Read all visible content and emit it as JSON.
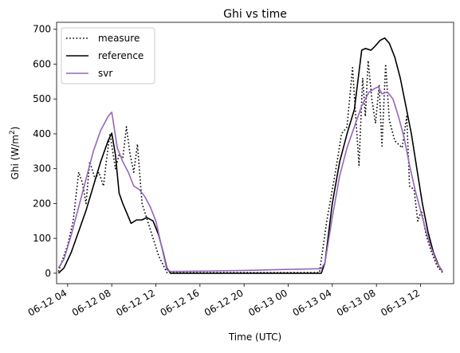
{
  "chart_data": {
    "type": "line",
    "title": "Ghi vs time",
    "xlabel": "Time (UTC)",
    "ylabel": "Ghi (W/m",
    "ylabel_sup": "2",
    "ylabel_close": ")",
    "xlim": [
      "06-12 03:00",
      "06-13 15:00"
    ],
    "ylim": [
      -30,
      720
    ],
    "yticks": [
      0,
      100,
      200,
      300,
      400,
      500,
      600,
      700
    ],
    "xticks": [
      {
        "value": "06-12 04:00",
        "label": "06-12 04"
      },
      {
        "value": "06-12 08:00",
        "label": "06-12 08"
      },
      {
        "value": "06-12 12:00",
        "label": "06-12 12"
      },
      {
        "value": "06-12 16:00",
        "label": "06-12 16"
      },
      {
        "value": "06-12 20:00",
        "label": "06-12 20"
      },
      {
        "value": "06-13 00:00",
        "label": "06-13 00"
      },
      {
        "value": "06-13 04:00",
        "label": "06-13 04"
      },
      {
        "value": "06-13 08:00",
        "label": "06-13 08"
      },
      {
        "value": "06-13 12:00",
        "label": "06-13 12"
      }
    ],
    "grid": false,
    "legend_position": "upper left",
    "series": [
      {
        "name": "measure",
        "color": "#000000",
        "style": "dotted",
        "points": [
          [
            "06-12 03:10",
            5
          ],
          [
            "06-12 04:00",
            80
          ],
          [
            "06-12 04:30",
            150
          ],
          [
            "06-12 05:00",
            290
          ],
          [
            "06-12 05:20",
            260
          ],
          [
            "06-12 05:40",
            200
          ],
          [
            "06-12 06:00",
            320
          ],
          [
            "06-12 06:30",
            270
          ],
          [
            "06-12 06:50",
            290
          ],
          [
            "06-12 07:15",
            250
          ],
          [
            "06-12 07:30",
            320
          ],
          [
            "06-12 07:50",
            400
          ],
          [
            "06-12 08:20",
            300
          ],
          [
            "06-12 08:40",
            340
          ],
          [
            "06-12 09:00",
            330
          ],
          [
            "06-12 09:20",
            420
          ],
          [
            "06-12 09:40",
            340
          ],
          [
            "06-12 10:00",
            290
          ],
          [
            "06-12 10:20",
            370
          ],
          [
            "06-12 10:45",
            200
          ],
          [
            "06-12 11:15",
            150
          ],
          [
            "06-12 11:45",
            100
          ],
          [
            "06-12 12:15",
            50
          ],
          [
            "06-12 13:00",
            2
          ],
          [
            "06-12 16:00",
            2
          ],
          [
            "06-12 20:00",
            2
          ],
          [
            "06-13 00:00",
            2
          ],
          [
            "06-13 02:50",
            2
          ],
          [
            "06-13 03:30",
            150
          ],
          [
            "06-13 04:20",
            300
          ],
          [
            "06-13 04:50",
            400
          ],
          [
            "06-13 05:20",
            420
          ],
          [
            "06-13 05:50",
            590
          ],
          [
            "06-13 06:10",
            430
          ],
          [
            "06-13 06:25",
            310
          ],
          [
            "06-13 06:45",
            560
          ],
          [
            "06-13 07:00",
            450
          ],
          [
            "06-13 07:15",
            610
          ],
          [
            "06-13 07:35",
            500
          ],
          [
            "06-13 07:55",
            430
          ],
          [
            "06-13 08:15",
            540
          ],
          [
            "06-13 08:30",
            365
          ],
          [
            "06-13 08:50",
            600
          ],
          [
            "06-13 09:10",
            440
          ],
          [
            "06-13 09:40",
            380
          ],
          [
            "06-13 10:20",
            360
          ],
          [
            "06-13 10:45",
            450
          ],
          [
            "06-13 11:00",
            250
          ],
          [
            "06-13 11:25",
            240
          ],
          [
            "06-13 11:45",
            150
          ],
          [
            "06-13 12:05",
            180
          ],
          [
            "06-13 12:30",
            110
          ],
          [
            "06-13 13:00",
            60
          ],
          [
            "06-13 13:30",
            20
          ],
          [
            "06-13 14:00",
            2
          ]
        ]
      },
      {
        "name": "reference",
        "color": "#000000",
        "style": "solid",
        "points": [
          [
            "06-12 03:10",
            0
          ],
          [
            "06-12 03:40",
            15
          ],
          [
            "06-12 04:20",
            60
          ],
          [
            "06-12 05:00",
            120
          ],
          [
            "06-12 05:40",
            180
          ],
          [
            "06-12 06:20",
            250
          ],
          [
            "06-12 07:00",
            320
          ],
          [
            "06-12 07:40",
            380
          ],
          [
            "06-12 08:00",
            402
          ],
          [
            "06-12 08:20",
            340
          ],
          [
            "06-12 08:40",
            230
          ],
          [
            "06-12 09:00",
            200
          ],
          [
            "06-12 09:20",
            175
          ],
          [
            "06-12 09:45",
            143
          ],
          [
            "06-12 10:15",
            153
          ],
          [
            "06-12 10:45",
            153
          ],
          [
            "06-12 11:10",
            160
          ],
          [
            "06-12 11:45",
            150
          ],
          [
            "06-12 12:15",
            110
          ],
          [
            "06-12 12:40",
            60
          ],
          [
            "06-12 13:00",
            15
          ],
          [
            "06-12 13:20",
            0
          ],
          [
            "06-12 16:00",
            0
          ],
          [
            "06-12 20:00",
            0
          ],
          [
            "06-13 00:00",
            0
          ],
          [
            "06-13 03:00",
            0
          ],
          [
            "06-13 03:20",
            30
          ],
          [
            "06-13 04:00",
            200
          ],
          [
            "06-13 04:40",
            320
          ],
          [
            "06-13 05:20",
            400
          ],
          [
            "06-13 06:00",
            470
          ],
          [
            "06-13 06:40",
            640
          ],
          [
            "06-13 07:00",
            645
          ],
          [
            "06-13 07:30",
            640
          ],
          [
            "06-13 07:50",
            650
          ],
          [
            "06-13 08:20",
            668
          ],
          [
            "06-13 08:45",
            675
          ],
          [
            "06-13 09:10",
            660
          ],
          [
            "06-13 09:40",
            620
          ],
          [
            "06-13 10:10",
            560
          ],
          [
            "06-13 10:40",
            480
          ],
          [
            "06-13 11:10",
            400
          ],
          [
            "06-13 11:40",
            300
          ],
          [
            "06-13 12:10",
            200
          ],
          [
            "06-13 12:40",
            120
          ],
          [
            "06-13 13:10",
            60
          ],
          [
            "06-13 13:40",
            20
          ],
          [
            "06-13 14:00",
            5
          ]
        ]
      },
      {
        "name": "svr",
        "color": "#9467bd",
        "style": "solid",
        "points": [
          [
            "06-12 03:10",
            15
          ],
          [
            "06-12 03:40",
            40
          ],
          [
            "06-12 04:20",
            110
          ],
          [
            "06-12 05:00",
            190
          ],
          [
            "06-12 05:40",
            270
          ],
          [
            "06-12 06:20",
            350
          ],
          [
            "06-12 07:00",
            410
          ],
          [
            "06-12 07:40",
            450
          ],
          [
            "06-12 08:00",
            462
          ],
          [
            "06-12 08:30",
            360
          ],
          [
            "06-12 09:00",
            320
          ],
          [
            "06-12 09:30",
            290
          ],
          [
            "06-12 10:00",
            250
          ],
          [
            "06-12 10:30",
            240
          ],
          [
            "06-12 11:00",
            220
          ],
          [
            "06-12 11:30",
            190
          ],
          [
            "06-12 12:00",
            150
          ],
          [
            "06-12 12:30",
            80
          ],
          [
            "06-12 13:00",
            10
          ],
          [
            "06-12 13:20",
            5
          ],
          [
            "06-12 16:00",
            6
          ],
          [
            "06-12 20:00",
            8
          ],
          [
            "06-13 00:00",
            11
          ],
          [
            "06-13 03:00",
            13
          ],
          [
            "06-13 03:20",
            30
          ],
          [
            "06-13 04:00",
            160
          ],
          [
            "06-13 04:40",
            280
          ],
          [
            "06-13 05:20",
            360
          ],
          [
            "06-13 06:00",
            420
          ],
          [
            "06-13 06:40",
            480
          ],
          [
            "06-13 07:20",
            520
          ],
          [
            "06-13 07:50",
            530
          ],
          [
            "06-13 08:10",
            535
          ],
          [
            "06-13 08:30",
            515
          ],
          [
            "06-13 09:00",
            520
          ],
          [
            "06-13 09:30",
            500
          ],
          [
            "06-13 10:00",
            450
          ],
          [
            "06-13 10:30",
            390
          ],
          [
            "06-13 11:00",
            310
          ],
          [
            "06-13 11:30",
            240
          ],
          [
            "06-13 12:00",
            180
          ],
          [
            "06-13 12:30",
            120
          ],
          [
            "06-13 13:00",
            70
          ],
          [
            "06-13 13:30",
            30
          ],
          [
            "06-13 14:00",
            5
          ]
        ]
      }
    ]
  }
}
